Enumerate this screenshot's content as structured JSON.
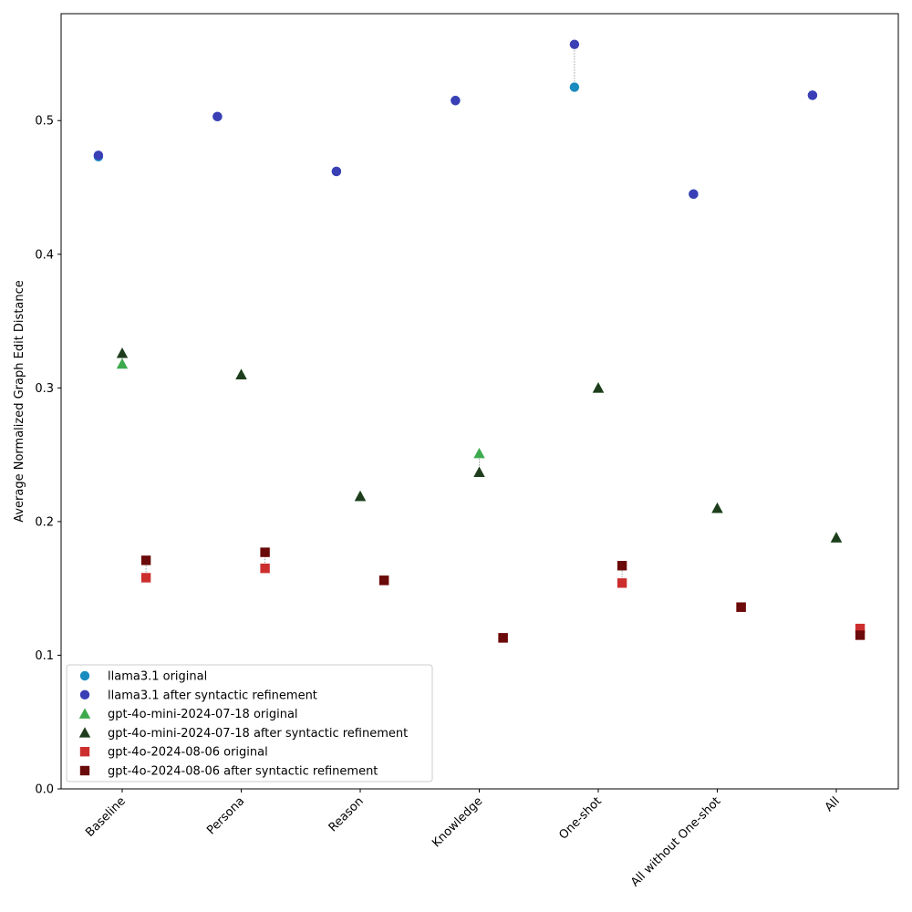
{
  "chart_data": {
    "type": "scatter",
    "title": "",
    "xlabel": "",
    "ylabel": "Average Normalized Graph Edit Distance",
    "categories": [
      "Baseline",
      "Persona",
      "Reason",
      "Knowledge",
      "One-shot",
      "All without One-shot",
      "All"
    ],
    "ylim": [
      0,
      0.58
    ],
    "yticks": [
      0.0,
      0.1,
      0.2,
      0.3,
      0.4,
      0.5
    ],
    "ytick_labels": [
      "0.0",
      "0.1",
      "0.2",
      "0.3",
      "0.4",
      "0.5"
    ],
    "grid": false,
    "legend_position": "lower-left",
    "series": [
      {
        "name": "llama3.1 original",
        "marker": "circle",
        "color": "#1b8bbf",
        "offset": -0.2,
        "values": [
          0.473,
          0.503,
          0.462,
          0.515,
          0.525,
          0.445,
          0.519
        ]
      },
      {
        "name": "llama3.1 after syntactic refinement",
        "marker": "circle",
        "color": "#3a3fb5",
        "offset": -0.2,
        "values": [
          0.474,
          0.503,
          0.462,
          0.515,
          0.557,
          0.445,
          0.519
        ]
      },
      {
        "name": "gpt-4o-mini-2024-07-18 original",
        "marker": "triangle",
        "color": "#3daa4d",
        "offset": 0.0,
        "values": [
          0.318,
          0.31,
          0.219,
          0.251,
          0.3,
          0.21,
          0.188
        ]
      },
      {
        "name": "gpt-4o-mini-2024-07-18 after syntactic refinement",
        "marker": "triangle",
        "color": "#1e3d1c",
        "offset": 0.0,
        "values": [
          0.326,
          0.31,
          0.219,
          0.237,
          0.3,
          0.21,
          0.188
        ]
      },
      {
        "name": "gpt-4o-2024-08-06 original",
        "marker": "square",
        "color": "#cc2e2e",
        "offset": 0.2,
        "values": [
          0.158,
          0.165,
          0.156,
          0.113,
          0.154,
          0.136,
          0.12
        ]
      },
      {
        "name": "gpt-4o-2024-08-06 after syntactic refinement",
        "marker": "square",
        "color": "#6b0a0a",
        "offset": 0.2,
        "values": [
          0.171,
          0.177,
          0.156,
          0.113,
          0.167,
          0.136,
          0.115
        ]
      }
    ]
  }
}
